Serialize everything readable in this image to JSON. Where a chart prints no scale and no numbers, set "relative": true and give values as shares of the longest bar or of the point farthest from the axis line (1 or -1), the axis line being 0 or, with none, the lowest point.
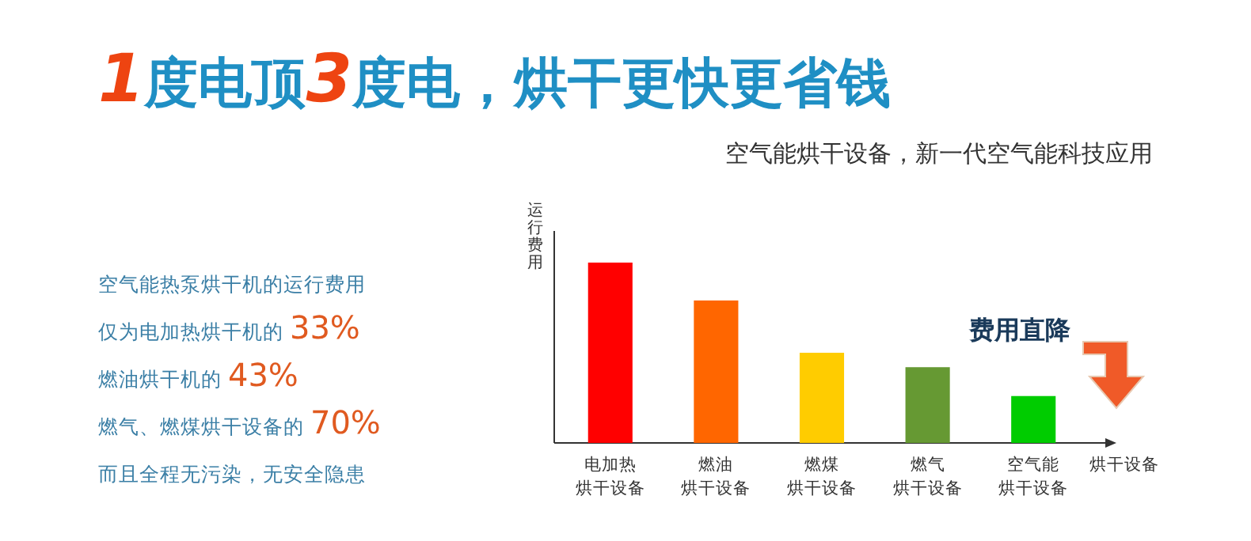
{
  "chart_data": {
    "type": "bar",
    "title": "1度电顶3度电，烘干更快更省钱",
    "subtitle": "空气能烘干设备，新一代空气能科技应用",
    "ylabel": "运行费用",
    "xlabel": "烘干设备",
    "categories": [
      "电加热烘干设备",
      "燃油烘干设备",
      "燃煤烘干设备",
      "燃气烘干设备",
      "空气能烘干设备"
    ],
    "values": [
      1,
      0.79,
      0.5,
      0.42,
      0.26
    ],
    "colors": [
      "#ff0000",
      "#ff6600",
      "#ffcc00",
      "#669933",
      "#00cc00"
    ],
    "relative": true,
    "annotations": [
      "空气能热泵烘干机的运行费用",
      "仅为电加热烘干机的 33%",
      "燃油烘干机的 43%",
      "燃气、燃煤烘干设备的 70%",
      "而且全程无污染，无安全隐患",
      "费用直降"
    ]
  }
}
